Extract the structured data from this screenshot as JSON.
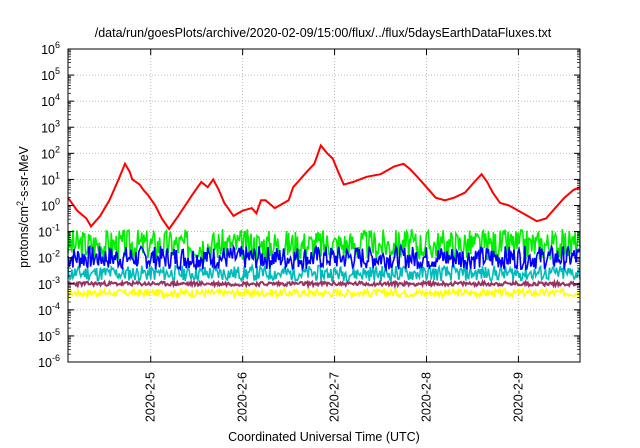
{
  "chart_data": {
    "type": "line",
    "title": "/data/run/goesPlots/archive/2020-02-09/15:00/flux/../flux/5daysEarthDataFluxes.txt",
    "xlabel": "Coordinated Universal Time (UTC)",
    "ylabel_parts": [
      "protons/cm",
      "2",
      "-s-sr-MeV"
    ],
    "y_scale": "log",
    "ylim_exp": [
      -6,
      6
    ],
    "y_tick_base": "10",
    "y_tick_exps": [
      "-6",
      "-5",
      "-4",
      "-3",
      "-2",
      "-1",
      "0",
      "1",
      "2",
      "3",
      "4",
      "5",
      "6"
    ],
    "xlim_days": [
      4.1,
      9.67
    ],
    "x_ticks": [
      {
        "label": "2020-2-5",
        "day": 5
      },
      {
        "label": "2020-2-6",
        "day": 6
      },
      {
        "label": "2020-2-7",
        "day": 7
      },
      {
        "label": "2020-2-8",
        "day": 8
      },
      {
        "label": "2020-2-9",
        "day": 9
      }
    ],
    "grid": true,
    "series": [
      {
        "color": "#ff0000",
        "points": [
          [
            4.1,
            0.3
          ],
          [
            4.2,
            -0.2
          ],
          [
            4.3,
            -0.5
          ],
          [
            4.35,
            -0.8
          ],
          [
            4.45,
            -0.4
          ],
          [
            4.55,
            0.2
          ],
          [
            4.65,
            1.0
          ],
          [
            4.72,
            1.6
          ],
          [
            4.77,
            1.3
          ],
          [
            4.8,
            1.0
          ],
          [
            4.88,
            0.8
          ],
          [
            4.92,
            0.6
          ],
          [
            4.97,
            0.4
          ],
          [
            5.05,
            0.0
          ],
          [
            5.12,
            -0.5
          ],
          [
            5.2,
            -0.9
          ],
          [
            5.3,
            -0.4
          ],
          [
            5.45,
            0.4
          ],
          [
            5.55,
            0.9
          ],
          [
            5.62,
            0.7
          ],
          [
            5.68,
            1.0
          ],
          [
            5.74,
            0.6
          ],
          [
            5.8,
            0.1
          ],
          [
            5.9,
            -0.4
          ],
          [
            6.0,
            -0.2
          ],
          [
            6.1,
            -0.1
          ],
          [
            6.15,
            -0.3
          ],
          [
            6.2,
            0.2
          ],
          [
            6.25,
            0.2
          ],
          [
            6.35,
            -0.1
          ],
          [
            6.5,
            0.2
          ],
          [
            6.55,
            0.7
          ],
          [
            6.6,
            0.9
          ],
          [
            6.7,
            1.3
          ],
          [
            6.78,
            1.6
          ],
          [
            6.85,
            2.3
          ],
          [
            6.92,
            2.0
          ],
          [
            6.98,
            1.8
          ],
          [
            7.05,
            1.2
          ],
          [
            7.1,
            0.8
          ],
          [
            7.2,
            0.9
          ],
          [
            7.35,
            1.1
          ],
          [
            7.5,
            1.2
          ],
          [
            7.65,
            1.5
          ],
          [
            7.75,
            1.6
          ],
          [
            7.82,
            1.4
          ],
          [
            7.9,
            1.1
          ],
          [
            8.0,
            0.7
          ],
          [
            8.1,
            0.3
          ],
          [
            8.2,
            0.2
          ],
          [
            8.3,
            0.3
          ],
          [
            8.42,
            0.5
          ],
          [
            8.52,
            0.9
          ],
          [
            8.6,
            1.2
          ],
          [
            8.66,
            0.9
          ],
          [
            8.72,
            0.5
          ],
          [
            8.8,
            0.1
          ],
          [
            8.9,
            0.0
          ],
          [
            9.0,
            -0.2
          ],
          [
            9.1,
            -0.4
          ],
          [
            9.2,
            -0.6
          ],
          [
            9.3,
            -0.5
          ],
          [
            9.4,
            -0.1
          ],
          [
            9.5,
            0.3
          ],
          [
            9.6,
            0.6
          ],
          [
            9.67,
            0.7
          ]
        ]
      },
      {
        "color": "#00ee00",
        "base": -1.5,
        "amp": 0.6,
        "seed": 3
      },
      {
        "color": "#0000ff",
        "base": -2.0,
        "amp": 0.45,
        "seed": 7
      },
      {
        "color": "#00bbbb",
        "base": -2.6,
        "amp": 0.3,
        "seed": 11
      },
      {
        "color": "#ffff00",
        "base": -3.35,
        "amp": 0.15,
        "seed": 17
      },
      {
        "color": "#993366",
        "base": -3.0,
        "amp": 0.08,
        "seed": 23
      }
    ]
  }
}
